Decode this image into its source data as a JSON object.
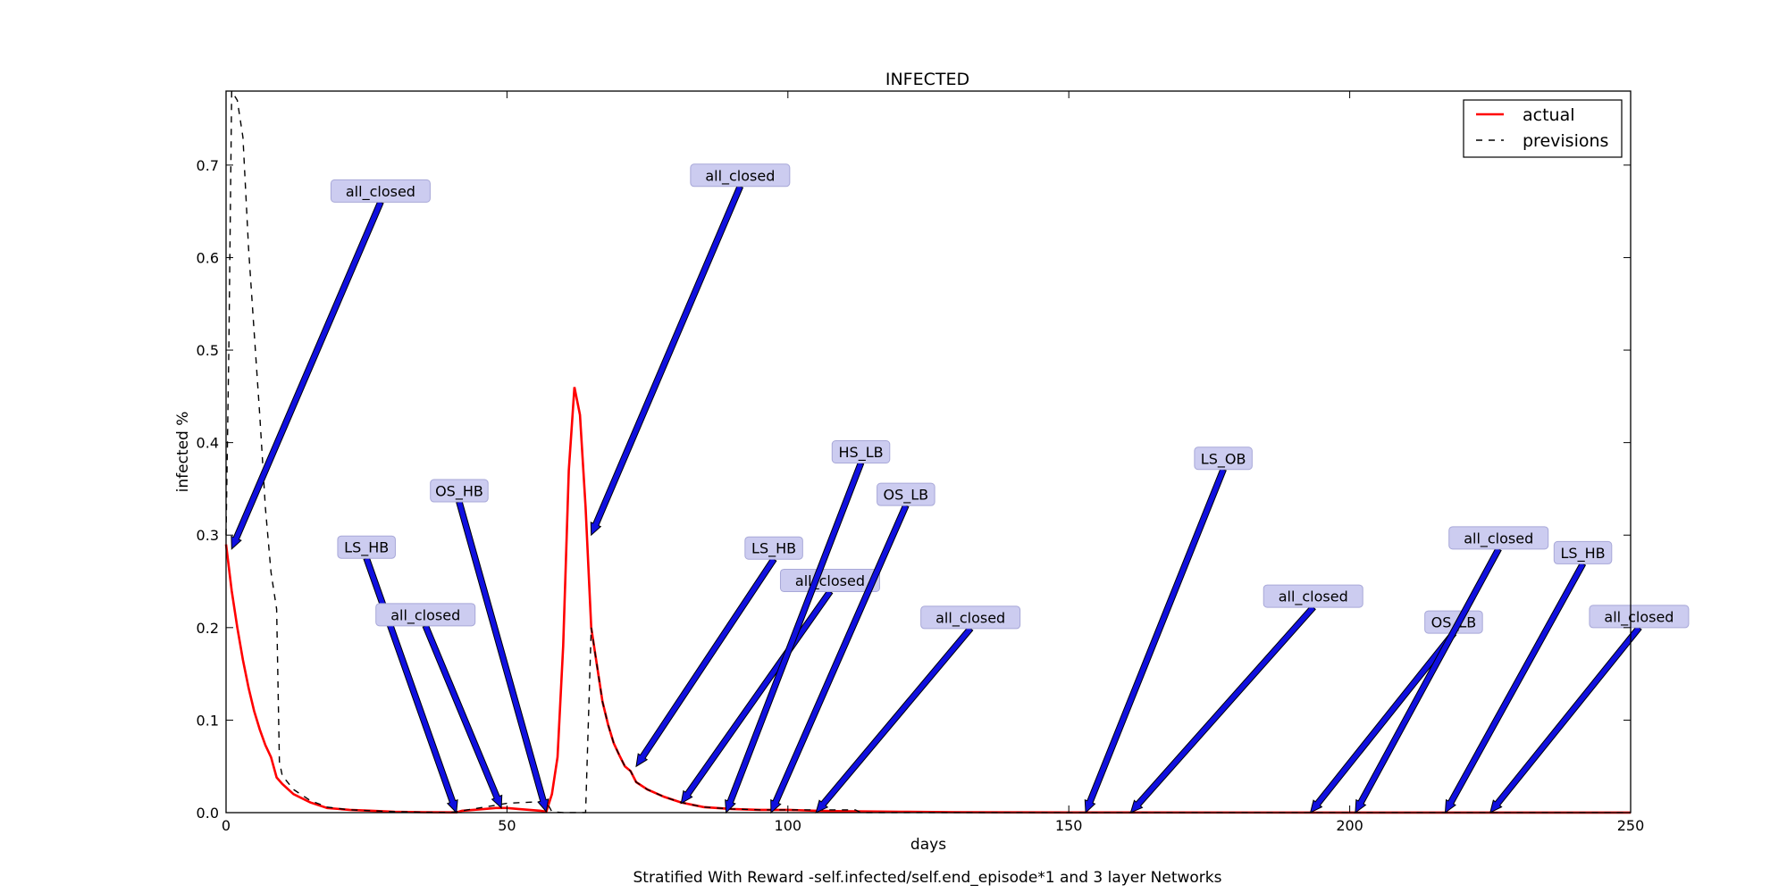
{
  "chart_data": {
    "type": "line",
    "title": "INFECTED",
    "xlabel": "days",
    "ylabel": "infected %",
    "caption": "Stratified With Reward -self.infected/self.end_episode*1 and 3 layer Networks",
    "xlim": [
      0,
      250
    ],
    "ylim": [
      0,
      0.78
    ],
    "xticks": [
      0,
      50,
      100,
      150,
      200,
      250
    ],
    "yticks": [
      0.0,
      0.1,
      0.2,
      0.3,
      0.4,
      0.5,
      0.6,
      0.7
    ],
    "grid": false,
    "legend_position": "top-right",
    "colors": {
      "actual": "#ff0000",
      "previsions": "#000000",
      "arrow": "#1010e0",
      "annotation_box": "#ccccf0"
    },
    "series": [
      {
        "name": "actual",
        "style": "solid",
        "points": [
          [
            0,
            0.29
          ],
          [
            1,
            0.24
          ],
          [
            2,
            0.2
          ],
          [
            3,
            0.165
          ],
          [
            4,
            0.135
          ],
          [
            5,
            0.11
          ],
          [
            6,
            0.09
          ],
          [
            7,
            0.073
          ],
          [
            8,
            0.06
          ],
          [
            9,
            0.038
          ],
          [
            10,
            0.031
          ],
          [
            12,
            0.02
          ],
          [
            15,
            0.011
          ],
          [
            18,
            0.005
          ],
          [
            22,
            0.003
          ],
          [
            26,
            0.002
          ],
          [
            30,
            0.001
          ],
          [
            35,
            0.0005
          ],
          [
            40,
            0.0003
          ],
          [
            41,
            0.0003
          ],
          [
            42,
            0.002
          ],
          [
            44,
            0.003
          ],
          [
            46,
            0.004
          ],
          [
            48,
            0.005
          ],
          [
            50,
            0.005
          ],
          [
            52,
            0.004
          ],
          [
            54,
            0.003
          ],
          [
            56,
            0.002
          ],
          [
            57,
            0.001
          ],
          [
            58,
            0.02
          ],
          [
            59,
            0.06
          ],
          [
            60,
            0.18
          ],
          [
            61,
            0.37
          ],
          [
            62,
            0.46
          ],
          [
            63,
            0.43
          ],
          [
            64,
            0.33
          ],
          [
            65,
            0.2
          ],
          [
            66,
            0.16
          ],
          [
            67,
            0.12
          ],
          [
            68,
            0.095
          ],
          [
            69,
            0.075
          ],
          [
            70,
            0.062
          ],
          [
            71,
            0.05
          ],
          [
            72,
            0.045
          ],
          [
            73,
            0.033
          ],
          [
            75,
            0.025
          ],
          [
            78,
            0.017
          ],
          [
            81,
            0.011
          ],
          [
            85,
            0.006
          ],
          [
            90,
            0.004
          ],
          [
            95,
            0.003
          ],
          [
            100,
            0.003
          ],
          [
            105,
            0.002
          ],
          [
            110,
            0.0015
          ],
          [
            120,
            0.001
          ],
          [
            130,
            0.0005
          ],
          [
            140,
            0.0003
          ],
          [
            150,
            0.0002
          ],
          [
            200,
            0.0001
          ],
          [
            250,
            0.0001
          ]
        ]
      },
      {
        "name": "previsions",
        "style": "dashed",
        "points": [
          [
            0,
            0.3
          ],
          [
            0.5,
            0.5
          ],
          [
            1,
            0.78
          ],
          [
            2,
            0.77
          ],
          [
            3,
            0.73
          ],
          [
            4,
            0.61
          ],
          [
            5,
            0.52
          ],
          [
            6,
            0.43
          ],
          [
            7,
            0.33
          ],
          [
            8,
            0.26
          ],
          [
            9,
            0.22
          ],
          [
            9.5,
            0.055
          ],
          [
            10,
            0.04
          ],
          [
            12,
            0.025
          ],
          [
            15,
            0.013
          ],
          [
            18,
            0.006
          ],
          [
            22,
            0.003
          ],
          [
            26,
            0.002
          ],
          [
            30,
            0.001
          ],
          [
            35,
            0.0005
          ],
          [
            40,
            0.0002
          ],
          [
            42,
            0.002
          ],
          [
            44,
            0.004
          ],
          [
            46,
            0.006
          ],
          [
            48,
            0.008
          ],
          [
            50,
            0.01
          ],
          [
            53,
            0.011
          ],
          [
            57,
            0.012
          ],
          [
            58,
            0.001
          ],
          [
            60,
            0.0001
          ],
          [
            64,
            0.0001
          ],
          [
            65,
            0.2
          ],
          [
            66,
            0.16
          ],
          [
            67,
            0.12
          ],
          [
            68,
            0.095
          ],
          [
            69,
            0.075
          ],
          [
            70,
            0.062
          ],
          [
            71,
            0.05
          ],
          [
            72,
            0.045
          ],
          [
            73,
            0.033
          ],
          [
            75,
            0.025
          ],
          [
            78,
            0.017
          ],
          [
            81,
            0.011
          ],
          [
            85,
            0.006
          ],
          [
            90,
            0.004
          ],
          [
            95,
            0.003
          ],
          [
            100,
            0.003
          ],
          [
            105,
            0.003
          ],
          [
            110,
            0.003
          ],
          [
            112,
            0.003
          ],
          [
            113,
            0.0001
          ],
          [
            250,
            0.0001
          ]
        ]
      }
    ],
    "annotations": [
      {
        "text": "all_closed",
        "label_at": [
          27.5,
          0.672
        ],
        "target": [
          1,
          0.285
        ]
      },
      {
        "text": "LS_HB",
        "label_at": [
          25,
          0.287
        ],
        "target": [
          41,
          0.0
        ]
      },
      {
        "text": "all_closed",
        "label_at": [
          35.5,
          0.214
        ],
        "target": [
          49,
          0.005
        ]
      },
      {
        "text": "OS_HB",
        "label_at": [
          41.5,
          0.348
        ],
        "target": [
          57,
          0.001
        ]
      },
      {
        "text": "all_closed",
        "label_at": [
          91.5,
          0.689
        ],
        "target": [
          65,
          0.3
        ]
      },
      {
        "text": "LS_HB",
        "label_at": [
          97.5,
          0.286
        ],
        "target": [
          73,
          0.05
        ]
      },
      {
        "text": "all_closed",
        "label_at": [
          107.5,
          0.251
        ],
        "target": [
          81,
          0.01
        ]
      },
      {
        "text": "HS_LB",
        "label_at": [
          113,
          0.39
        ],
        "target": [
          89,
          0.0
        ]
      },
      {
        "text": "OS_LB",
        "label_at": [
          121,
          0.344
        ],
        "target": [
          97,
          0.0
        ]
      },
      {
        "text": "all_closed",
        "label_at": [
          132.5,
          0.211
        ],
        "target": [
          105,
          0.0
        ]
      },
      {
        "text": "LS_OB",
        "label_at": [
          177.5,
          0.383
        ],
        "target": [
          153,
          0.0
        ]
      },
      {
        "text": "all_closed",
        "label_at": [
          193.5,
          0.234
        ],
        "target": [
          161,
          0.0
        ]
      },
      {
        "text": "OS_LB",
        "label_at": [
          218.5,
          0.206
        ],
        "target": [
          193,
          0.0
        ]
      },
      {
        "text": "all_closed",
        "label_at": [
          226.5,
          0.297
        ],
        "target": [
          201,
          0.0
        ]
      },
      {
        "text": "LS_HB",
        "label_at": [
          241.5,
          0.281
        ],
        "target": [
          217,
          0.0
        ]
      },
      {
        "text": "all_closed",
        "label_at": [
          251.5,
          0.212
        ],
        "target": [
          225,
          0.0
        ]
      }
    ]
  }
}
